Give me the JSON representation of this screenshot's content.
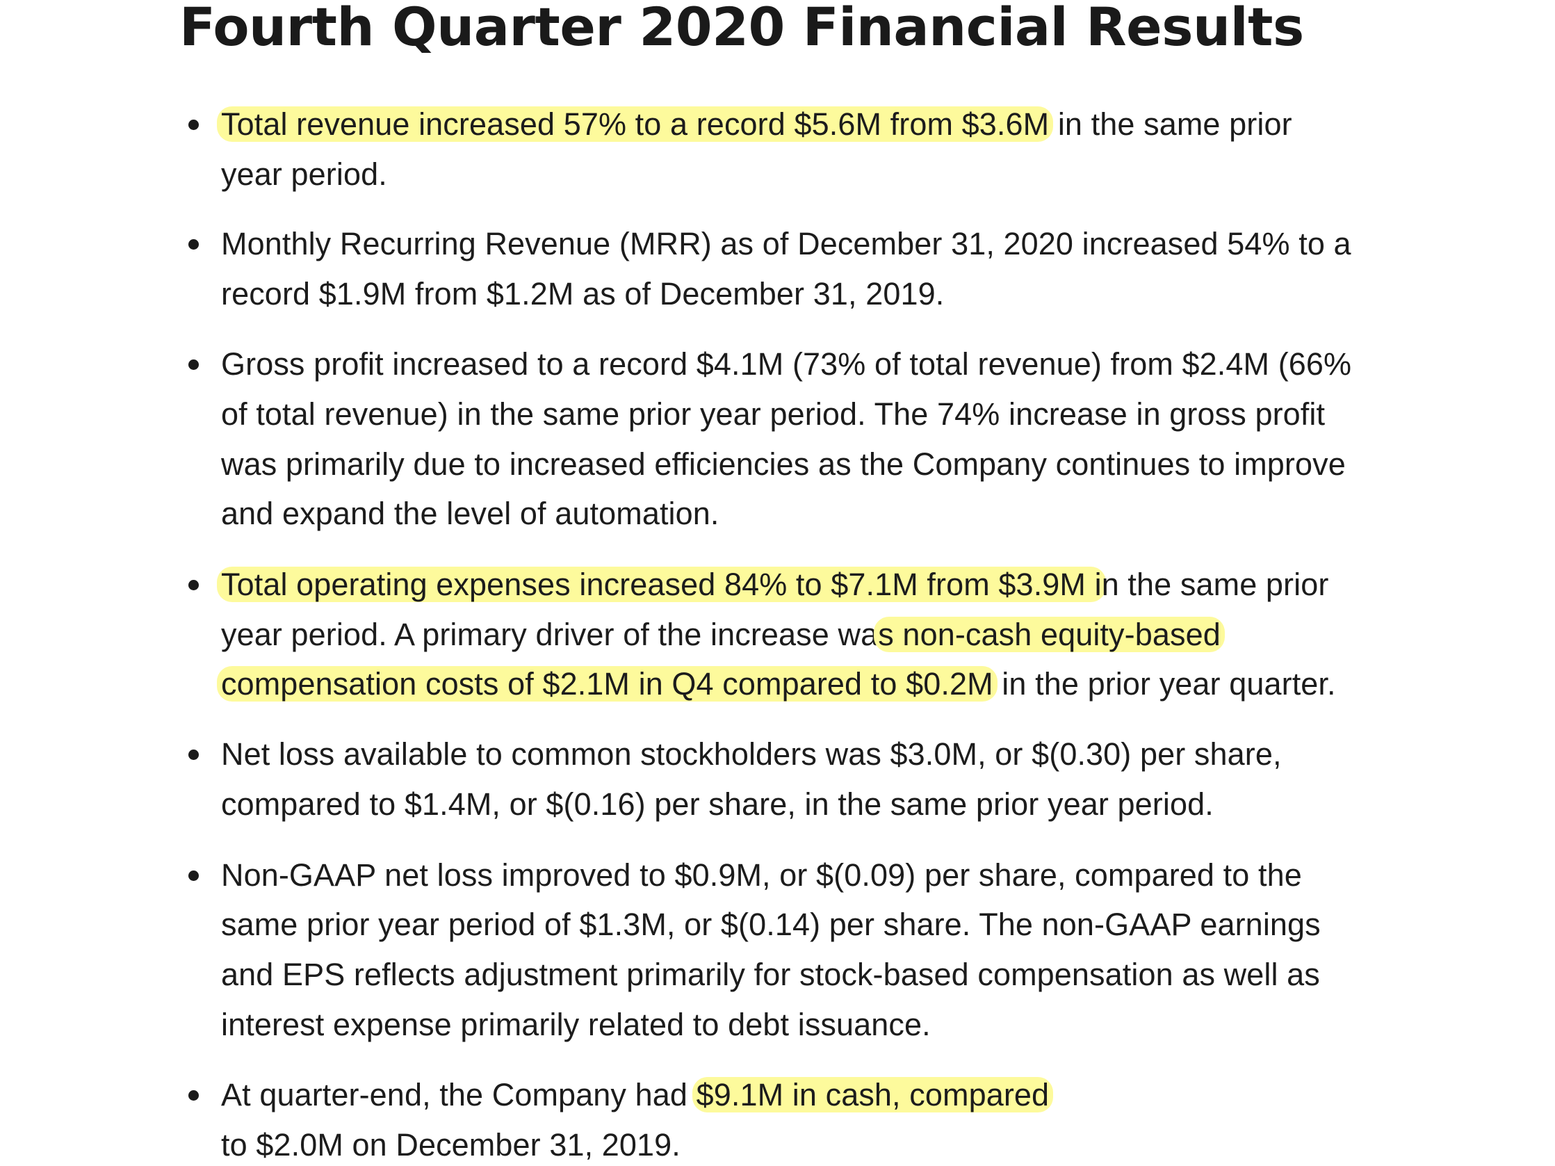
{
  "document": {
    "title": "Fourth Quarter 2020 Financial Results",
    "highlight_color": "#fdfa9c",
    "bullets": [
      {
        "lines": [
          {
            "hl": "Total revenue increased 57% to a record $5.6M from $3.6M",
            "rest": " in the same prior"
          },
          {
            "pre": "year period."
          }
        ]
      },
      {
        "lines": [
          {
            "pre": "Monthly Recurring Revenue (MRR) as of December 31, 2020 increased 54% to a"
          },
          {
            "pre": "record $1.9M from $1.2M as of December 31, 2019."
          }
        ]
      },
      {
        "lines": [
          {
            "pre": "Gross profit increased to a record $4.1M (73% of total revenue) from $2.4M (66%"
          },
          {
            "pre": "of total revenue) in the same prior year period. The 74% increase in gross profit"
          },
          {
            "pre": "was primarily due to increased efficiencies as the Company continues to improve"
          },
          {
            "pre": "and expand the level of automation."
          }
        ]
      },
      {
        "lines": [
          {
            "hl": "Total operating expenses increased 84% to $7.1M from $3.9M i",
            "rest": "n the same prior"
          },
          {
            "pre": "year period. A primary driver of the increase wa",
            "hl": "s non-cash equity-based"
          },
          {
            "hl": "compensation costs of $2.1M in Q4 compared to $0.2M",
            "rest": " in the prior year quarter."
          }
        ]
      },
      {
        "lines": [
          {
            "pre": "Net loss available to common stockholders was $3.0M, or $(0.30) per share,"
          },
          {
            "pre": "compared to $1.4M, or $(0.16) per share, in the same prior year period."
          }
        ]
      },
      {
        "lines": [
          {
            "pre": "Non-GAAP net loss improved to $0.9M, or $(0.09) per share, compared to the"
          },
          {
            "pre": "same prior year period of $1.3M, or $(0.14) per share. The non-GAAP earnings"
          },
          {
            "pre": "and EPS reflects adjustment primarily for stock-based compensation as well as"
          },
          {
            "pre": "interest expense primarily related to debt issuance."
          }
        ]
      },
      {
        "lines": [
          {
            "pre": "At quarter-end, the Company had ",
            "hl": "$9.1M in cash, compared"
          },
          {
            "pre": "to $2.0M on December 31, 2019."
          }
        ]
      }
    ]
  }
}
